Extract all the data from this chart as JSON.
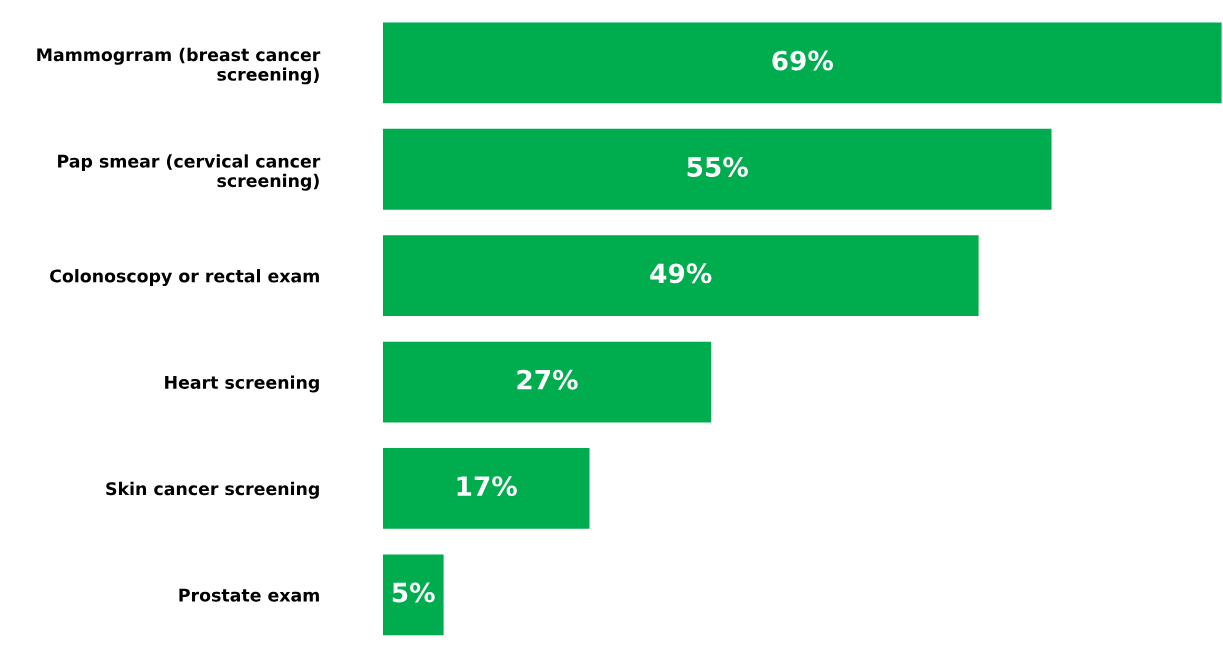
{
  "chart_data": {
    "type": "bar",
    "orientation": "horizontal",
    "categories": [
      "Mammogrram (breast cancer\nscreening)",
      "Pap smear (cervical cancer\nscreening)",
      "Colonoscopy or rectal exam",
      "Heart screening",
      "Skin cancer screening",
      "Prostate exam"
    ],
    "values": [
      69,
      55,
      49,
      27,
      17,
      5
    ],
    "value_labels": [
      "69%",
      "55%",
      "49%",
      "27%",
      "17%",
      "5%"
    ],
    "color": "#00ad4e"
  }
}
